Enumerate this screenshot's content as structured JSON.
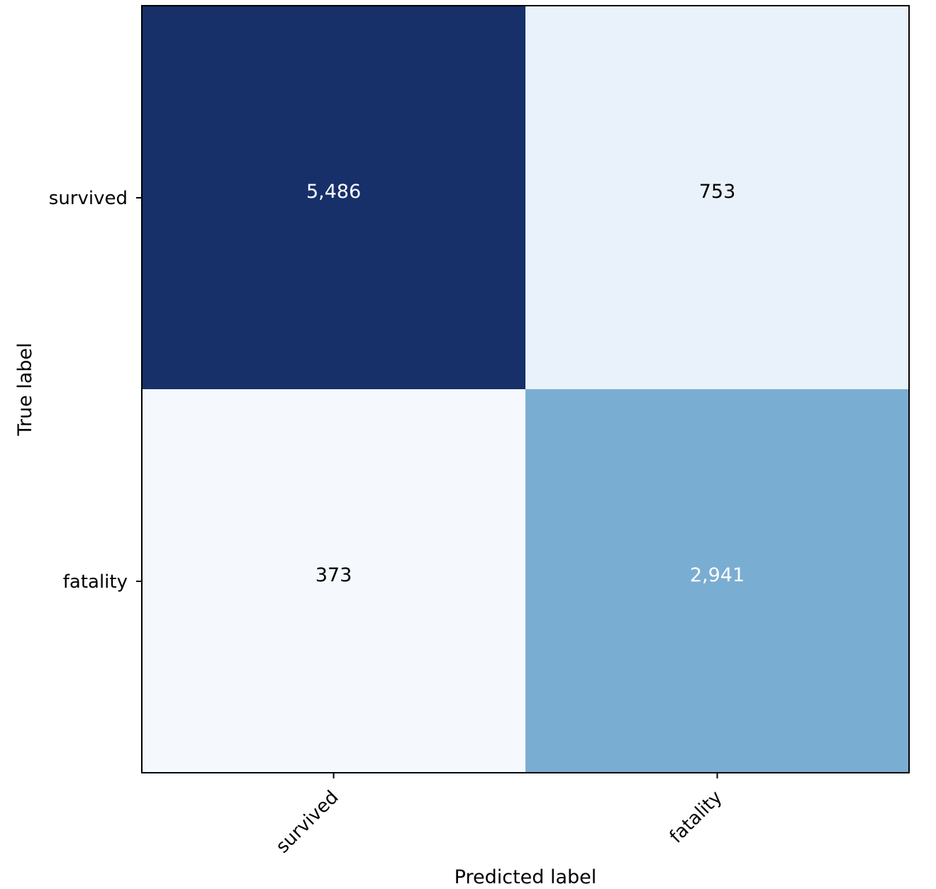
{
  "chart_data": {
    "type": "heatmap",
    "title": "",
    "xlabel": "Predicted label",
    "ylabel": "True label",
    "x_categories": [
      "survived",
      "fatality"
    ],
    "y_categories": [
      "survived",
      "fatality"
    ],
    "values": [
      [
        5486,
        753
      ],
      [
        373,
        2941
      ]
    ],
    "value_labels": [
      [
        "5,486",
        "753"
      ],
      [
        "373",
        "2,941"
      ]
    ],
    "colormap": "Blues",
    "cell_colors": [
      [
        "#17306a",
        "#e9f1fa"
      ],
      [
        "#f5f9fe",
        "#7aadd2"
      ]
    ],
    "text_colors": [
      [
        "#ffffff",
        "#000000"
      ],
      [
        "#000000",
        "#ffffff"
      ]
    ],
    "grid": false,
    "legend": "none"
  }
}
